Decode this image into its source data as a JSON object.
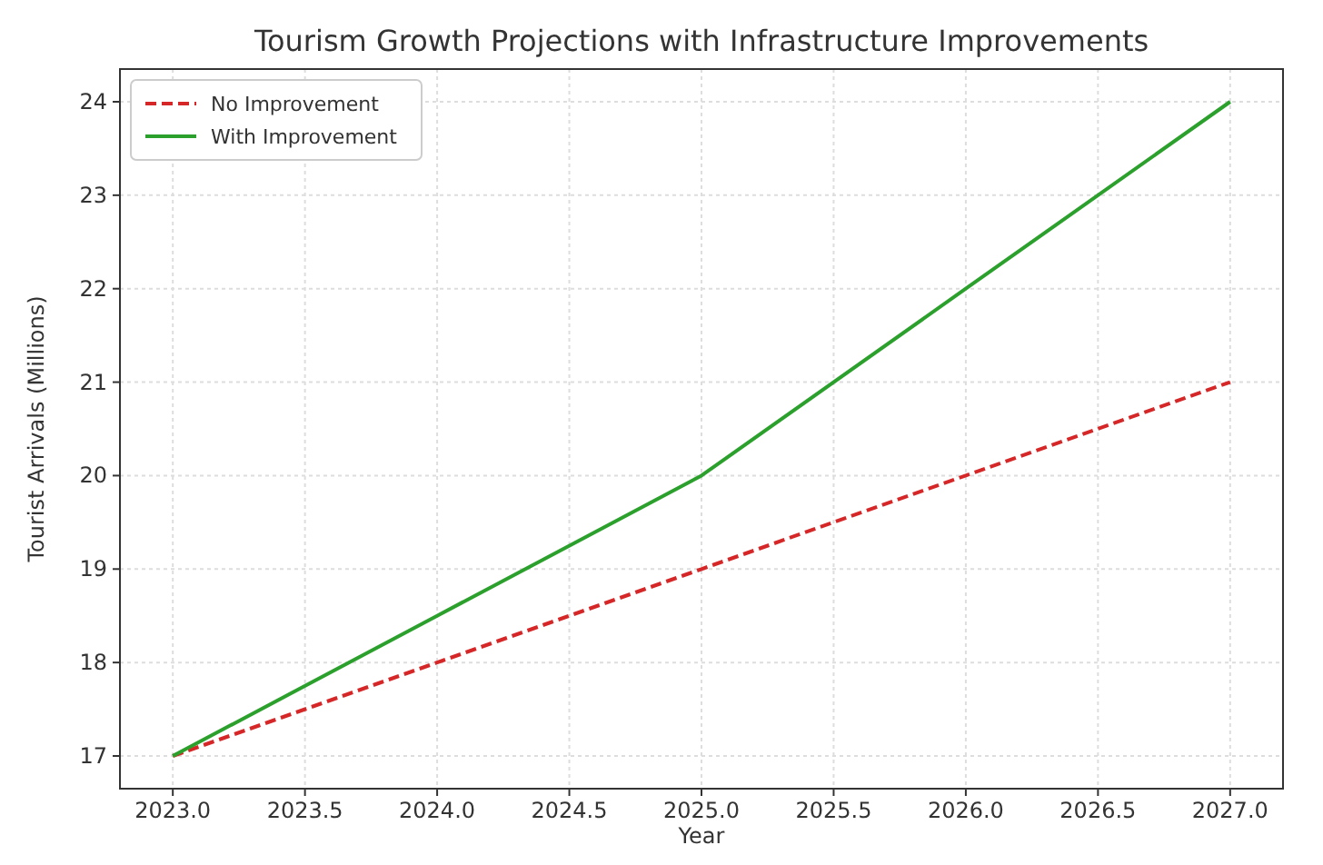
{
  "chart_data": {
    "type": "line",
    "title": "Tourism Growth Projections with Infrastructure Improvements",
    "xlabel": "Year",
    "ylabel": "Tourist Arrivals (Millions)",
    "x": [
      2023,
      2024,
      2025,
      2026,
      2027
    ],
    "series": [
      {
        "name": "No Improvement",
        "color": "#d62728",
        "values": [
          17,
          18,
          19,
          20,
          21
        ],
        "line_style": "dashed"
      },
      {
        "name": "With Improvement",
        "color": "#2ca02c",
        "values": [
          17,
          18.5,
          20,
          22,
          24
        ],
        "line_style": "solid"
      }
    ],
    "xlim": [
      2022.8,
      2027.2
    ],
    "ylim": [
      16.65,
      24.35
    ],
    "xticks": [
      {
        "value": 2023,
        "label": "2023.0"
      },
      {
        "value": 2023.5,
        "label": "2023.5"
      },
      {
        "value": 2024,
        "label": "2024.0"
      },
      {
        "value": 2024.5,
        "label": "2024.5"
      },
      {
        "value": 2025,
        "label": "2025.0"
      },
      {
        "value": 2025.5,
        "label": "2025.5"
      },
      {
        "value": 2026,
        "label": "2026.0"
      },
      {
        "value": 2026.5,
        "label": "2026.5"
      },
      {
        "value": 2027,
        "label": "2027.0"
      }
    ],
    "yticks": [
      17,
      18,
      19,
      20,
      21,
      22,
      23,
      24
    ],
    "grid": true,
    "legend": "top left"
  }
}
